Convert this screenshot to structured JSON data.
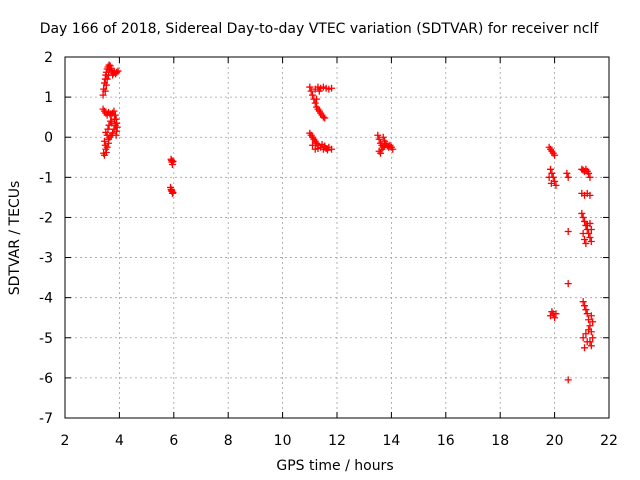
{
  "chart_data": {
    "type": "scatter",
    "title": "Day 166 of 2018, Sidereal Day-to-day VTEC variation (SDTVAR) for receiver nclf",
    "xlabel": "GPS time / hours",
    "ylabel": "SDTVAR / TECUs",
    "xlim": [
      2,
      22
    ],
    "ylim": [
      -7,
      2
    ],
    "xticks": [
      2,
      4,
      6,
      8,
      10,
      12,
      14,
      16,
      18,
      20,
      22
    ],
    "yticks": [
      -7,
      -6,
      -5,
      -4,
      -3,
      -2,
      -1,
      0,
      1,
      2
    ],
    "grid": true,
    "marker": "plus",
    "color": "#ff0000",
    "series": [
      {
        "points": [
          [
            3.4,
            1.05
          ],
          [
            3.42,
            1.2
          ],
          [
            3.45,
            1.35
          ],
          [
            3.48,
            1.45
          ],
          [
            3.5,
            1.55
          ],
          [
            3.52,
            1.62
          ],
          [
            3.55,
            1.7
          ],
          [
            3.58,
            1.75
          ],
          [
            3.62,
            1.8
          ],
          [
            3.66,
            1.78
          ],
          [
            3.7,
            1.72
          ],
          [
            3.72,
            1.65
          ],
          [
            3.75,
            1.55
          ],
          [
            3.78,
            1.6
          ],
          [
            3.82,
            1.62
          ],
          [
            3.86,
            1.58
          ],
          [
            3.9,
            1.62
          ],
          [
            3.95,
            1.65
          ],
          [
            3.55,
            1.45
          ],
          [
            3.6,
            1.55
          ],
          [
            3.65,
            1.68
          ],
          [
            3.48,
            1.15
          ],
          [
            3.52,
            1.3
          ],
          [
            3.4,
            0.7
          ],
          [
            3.45,
            0.65
          ],
          [
            3.5,
            0.6
          ],
          [
            3.55,
            0.55
          ],
          [
            3.6,
            0.62
          ],
          [
            3.65,
            0.58
          ],
          [
            3.7,
            0.55
          ],
          [
            3.75,
            0.6
          ],
          [
            3.8,
            0.65
          ],
          [
            3.85,
            0.55
          ],
          [
            3.88,
            0.45
          ],
          [
            3.9,
            0.35
          ],
          [
            3.92,
            0.25
          ],
          [
            3.9,
            0.15
          ],
          [
            3.88,
            0.05
          ],
          [
            3.85,
            0.3
          ],
          [
            3.82,
            0.45
          ],
          [
            3.8,
            0.2
          ],
          [
            3.75,
            0.1
          ],
          [
            3.7,
            0.05
          ],
          [
            3.65,
            0.0
          ],
          [
            3.6,
            -0.05
          ],
          [
            3.55,
            0.05
          ],
          [
            3.5,
            0.12
          ],
          [
            3.58,
            0.2
          ],
          [
            3.62,
            0.3
          ],
          [
            3.68,
            0.4
          ],
          [
            3.72,
            0.35
          ],
          [
            3.45,
            -0.1
          ],
          [
            3.48,
            -0.2
          ],
          [
            3.5,
            -0.3
          ],
          [
            3.42,
            -0.4
          ],
          [
            3.45,
            -0.45
          ],
          [
            3.52,
            -0.38
          ],
          [
            3.55,
            -0.25
          ],
          [
            3.6,
            -0.15
          ],
          [
            5.9,
            -0.55
          ],
          [
            5.93,
            -0.62
          ],
          [
            5.95,
            -0.68
          ],
          [
            5.92,
            -0.58
          ],
          [
            5.97,
            -0.6
          ],
          [
            5.88,
            -1.25
          ],
          [
            5.9,
            -1.3
          ],
          [
            5.93,
            -1.35
          ],
          [
            5.95,
            -1.4
          ],
          [
            5.92,
            -1.32
          ],
          [
            5.97,
            -1.38
          ],
          [
            11.0,
            1.25
          ],
          [
            11.05,
            1.15
          ],
          [
            11.1,
            1.05
          ],
          [
            11.15,
            0.95
          ],
          [
            11.2,
            0.85
          ],
          [
            11.25,
            0.75
          ],
          [
            11.3,
            0.7
          ],
          [
            11.35,
            0.65
          ],
          [
            11.4,
            0.6
          ],
          [
            11.45,
            0.55
          ],
          [
            11.5,
            0.5
          ],
          [
            11.55,
            0.48
          ],
          [
            11.2,
            1.2
          ],
          [
            11.3,
            1.25
          ],
          [
            11.4,
            1.22
          ],
          [
            11.5,
            1.25
          ],
          [
            11.6,
            1.22
          ],
          [
            11.7,
            1.2
          ],
          [
            11.8,
            1.22
          ],
          [
            11.35,
            1.15
          ],
          [
            11.25,
            0.95
          ],
          [
            11.0,
            0.1
          ],
          [
            11.05,
            0.05
          ],
          [
            11.1,
            0.0
          ],
          [
            11.15,
            -0.05
          ],
          [
            11.2,
            -0.1
          ],
          [
            11.25,
            -0.15
          ],
          [
            11.3,
            -0.2
          ],
          [
            11.4,
            -0.25
          ],
          [
            11.5,
            -0.3
          ],
          [
            11.6,
            -0.28
          ],
          [
            11.7,
            -0.25
          ],
          [
            11.8,
            -0.3
          ],
          [
            11.1,
            -0.2
          ],
          [
            11.2,
            -0.3
          ],
          [
            11.3,
            -0.28
          ],
          [
            11.45,
            -0.18
          ],
          [
            11.55,
            -0.22
          ],
          [
            11.65,
            -0.32
          ],
          [
            13.5,
            0.05
          ],
          [
            13.55,
            -0.05
          ],
          [
            13.6,
            -0.15
          ],
          [
            13.65,
            -0.2
          ],
          [
            13.7,
            -0.25
          ],
          [
            13.75,
            -0.2
          ],
          [
            13.8,
            -0.15
          ],
          [
            13.85,
            -0.22
          ],
          [
            13.9,
            -0.25
          ],
          [
            13.95,
            -0.2
          ],
          [
            14.0,
            -0.25
          ],
          [
            14.05,
            -0.3
          ],
          [
            13.55,
            -0.35
          ],
          [
            13.6,
            -0.4
          ],
          [
            13.65,
            -0.3
          ],
          [
            13.75,
            -0.1
          ],
          [
            13.7,
            0.0
          ],
          [
            19.8,
            -0.25
          ],
          [
            19.85,
            -0.3
          ],
          [
            19.9,
            -0.35
          ],
          [
            19.95,
            -0.4
          ],
          [
            20.0,
            -0.45
          ],
          [
            19.85,
            -0.8
          ],
          [
            19.9,
            -0.9
          ],
          [
            19.95,
            -1.0
          ],
          [
            20.0,
            -1.1
          ],
          [
            20.05,
            -1.2
          ],
          [
            19.8,
            -1.0
          ],
          [
            19.88,
            -1.15
          ],
          [
            20.45,
            -0.9
          ],
          [
            20.5,
            -1.0
          ],
          [
            19.85,
            -4.45
          ],
          [
            19.9,
            -4.35
          ],
          [
            19.95,
            -4.4
          ],
          [
            20.0,
            -4.5
          ],
          [
            20.05,
            -4.4
          ],
          [
            20.5,
            -2.35
          ],
          [
            20.5,
            -3.65
          ],
          [
            20.5,
            -6.05
          ],
          [
            21.0,
            -0.8
          ],
          [
            21.05,
            -0.82
          ],
          [
            21.1,
            -0.85
          ],
          [
            21.15,
            -0.8
          ],
          [
            21.2,
            -0.85
          ],
          [
            21.25,
            -0.9
          ],
          [
            21.3,
            -1.0
          ],
          [
            21.0,
            -1.4
          ],
          [
            21.1,
            -1.45
          ],
          [
            21.2,
            -1.4
          ],
          [
            21.3,
            -1.45
          ],
          [
            21.0,
            -1.9
          ],
          [
            21.05,
            -2.0
          ],
          [
            21.1,
            -2.1
          ],
          [
            21.15,
            -2.2
          ],
          [
            21.2,
            -2.3
          ],
          [
            21.25,
            -2.4
          ],
          [
            21.3,
            -2.5
          ],
          [
            21.35,
            -2.6
          ],
          [
            21.05,
            -2.4
          ],
          [
            21.1,
            -2.55
          ],
          [
            21.15,
            -2.65
          ],
          [
            21.2,
            -2.2
          ],
          [
            21.3,
            -2.15
          ],
          [
            21.35,
            -2.3
          ],
          [
            21.05,
            -4.1
          ],
          [
            21.1,
            -4.2
          ],
          [
            21.15,
            -4.3
          ],
          [
            21.2,
            -4.4
          ],
          [
            21.25,
            -4.55
          ],
          [
            21.3,
            -4.7
          ],
          [
            21.35,
            -4.85
          ],
          [
            21.4,
            -5.0
          ],
          [
            21.35,
            -5.2
          ],
          [
            21.3,
            -5.1
          ],
          [
            21.2,
            -5.1
          ],
          [
            21.1,
            -5.25
          ],
          [
            21.05,
            -5.0
          ],
          [
            21.15,
            -4.9
          ],
          [
            21.25,
            -4.8
          ],
          [
            21.4,
            -4.6
          ],
          [
            21.35,
            -4.45
          ]
        ]
      }
    ]
  }
}
